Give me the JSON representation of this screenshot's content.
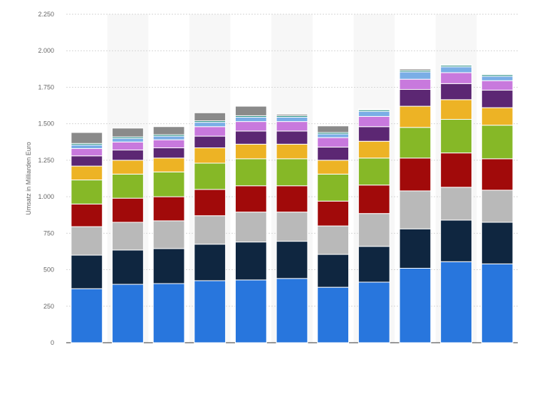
{
  "chart_data": {
    "type": "bar",
    "stacked": true,
    "title": "",
    "xlabel": "",
    "ylabel": "Umsatz in Milliarden Euro",
    "ylim": [
      0,
      2250
    ],
    "yticks": [
      0,
      250,
      500,
      750,
      1000,
      1250,
      1500,
      1750,
      2000,
      2250
    ],
    "ytick_labels": [
      "0",
      "250",
      "500",
      "750",
      "1.000",
      "1.250",
      "1.500",
      "1.750",
      "2.000",
      "2.250"
    ],
    "grid": true,
    "legend": "none",
    "categories": [
      "",
      "",
      "",
      "",
      "",
      "",
      "",
      "",
      "",
      "",
      ""
    ],
    "series": [
      {
        "color": "#2876dd",
        "values": [
          370,
          400,
          405,
          425,
          430,
          440,
          380,
          415,
          510,
          555,
          540
        ]
      },
      {
        "color": "#0f2640",
        "values": [
          230,
          235,
          240,
          250,
          260,
          255,
          225,
          245,
          270,
          285,
          285
        ]
      },
      {
        "color": "#b9b9b9",
        "values": [
          195,
          190,
          190,
          195,
          205,
          200,
          195,
          225,
          260,
          225,
          220
        ]
      },
      {
        "color": "#a10a0a",
        "values": [
          155,
          165,
          165,
          180,
          180,
          180,
          170,
          195,
          225,
          235,
          215
        ]
      },
      {
        "color": "#86b827",
        "values": [
          165,
          165,
          170,
          180,
          185,
          185,
          185,
          185,
          210,
          230,
          230
        ]
      },
      {
        "color": "#edb325",
        "values": [
          95,
          95,
          95,
          105,
          100,
          100,
          95,
          115,
          145,
          135,
          120
        ]
      },
      {
        "color": "#5c2773",
        "values": [
          70,
          70,
          70,
          80,
          90,
          90,
          90,
          100,
          115,
          110,
          120
        ]
      },
      {
        "color": "#c879dd",
        "values": [
          50,
          55,
          55,
          65,
          65,
          65,
          65,
          70,
          70,
          75,
          65
        ]
      },
      {
        "color": "#7aaee6",
        "values": [
          25,
          25,
          25,
          30,
          30,
          30,
          25,
          35,
          50,
          40,
          30
        ]
      },
      {
        "color": "#12857a",
        "values": [
          10,
          10,
          10,
          10,
          10,
          10,
          10,
          10,
          10,
          10,
          10
        ]
      },
      {
        "color": "#8a8a8a",
        "values": [
          75,
          60,
          55,
          55,
          65,
          10,
          45,
          5,
          10,
          5,
          5
        ]
      }
    ]
  }
}
